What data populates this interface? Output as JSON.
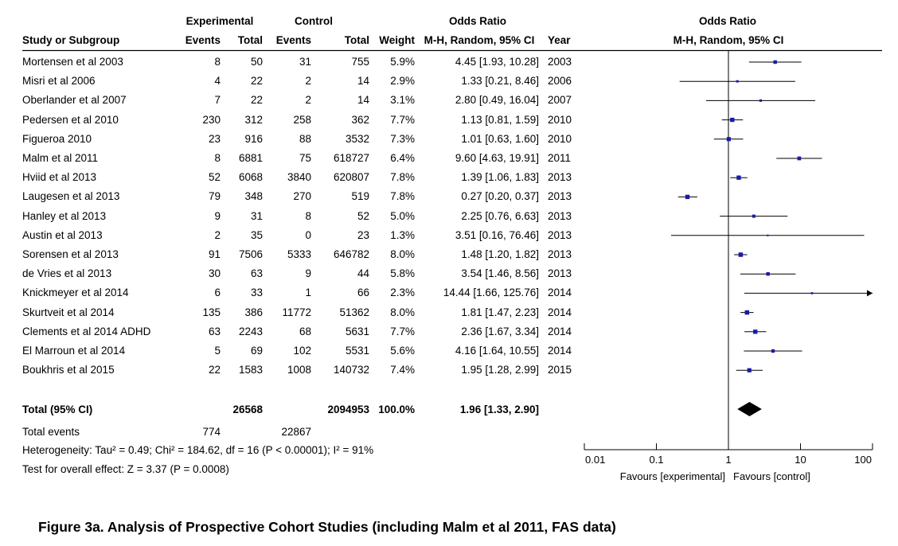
{
  "headers": {
    "experimental": "Experimental",
    "control": "Control",
    "odds_ratio_left": "Odds Ratio",
    "odds_ratio_right": "Odds Ratio",
    "study": "Study or Subgroup",
    "events_exp": "Events",
    "total_exp": "Total",
    "events_ctl": "Events",
    "total_ctl": "Total",
    "weight": "Weight",
    "method_left": "M-H, Random, 95% CI",
    "year": "Year",
    "method_right": "M-H, Random, 95% CI"
  },
  "studies": [
    {
      "name": "Mortensen et al 2003",
      "e_ev": "8",
      "e_tot": "50",
      "c_ev": "31",
      "c_tot": "755",
      "weight": "5.9%",
      "ci": "4.45 [1.93, 10.28]",
      "year": "2003"
    },
    {
      "name": "Misri et al 2006",
      "e_ev": "4",
      "e_tot": "22",
      "c_ev": "2",
      "c_tot": "14",
      "weight": "2.9%",
      "ci": "1.33 [0.21, 8.46]",
      "year": "2006"
    },
    {
      "name": "Oberlander et al 2007",
      "e_ev": "7",
      "e_tot": "22",
      "c_ev": "2",
      "c_tot": "14",
      "weight": "3.1%",
      "ci": "2.80 [0.49, 16.04]",
      "year": "2007"
    },
    {
      "name": "Pedersen et al 2010",
      "e_ev": "230",
      "e_tot": "312",
      "c_ev": "258",
      "c_tot": "362",
      "weight": "7.7%",
      "ci": "1.13 [0.81, 1.59]",
      "year": "2010"
    },
    {
      "name": "Figueroa 2010",
      "e_ev": "23",
      "e_tot": "916",
      "c_ev": "88",
      "c_tot": "3532",
      "weight": "7.3%",
      "ci": "1.01 [0.63, 1.60]",
      "year": "2010"
    },
    {
      "name": "Malm et al 2011",
      "e_ev": "8",
      "e_tot": "6881",
      "c_ev": "75",
      "c_tot": "618727",
      "weight": "6.4%",
      "ci": "9.60 [4.63, 19.91]",
      "year": "2011"
    },
    {
      "name": "Hviid et al 2013",
      "e_ev": "52",
      "e_tot": "6068",
      "c_ev": "3840",
      "c_tot": "620807",
      "weight": "7.8%",
      "ci": "1.39 [1.06, 1.83]",
      "year": "2013"
    },
    {
      "name": "Laugesen et al 2013",
      "e_ev": "79",
      "e_tot": "348",
      "c_ev": "270",
      "c_tot": "519",
      "weight": "7.8%",
      "ci": "0.27 [0.20, 0.37]",
      "year": "2013"
    },
    {
      "name": "Hanley et al 2013",
      "e_ev": "9",
      "e_tot": "31",
      "c_ev": "8",
      "c_tot": "52",
      "weight": "5.0%",
      "ci": "2.25 [0.76, 6.63]",
      "year": "2013"
    },
    {
      "name": "Austin et al 2013",
      "e_ev": "2",
      "e_tot": "35",
      "c_ev": "0",
      "c_tot": "23",
      "weight": "1.3%",
      "ci": "3.51 [0.16, 76.46]",
      "year": "2013"
    },
    {
      "name": "Sorensen et al 2013",
      "e_ev": "91",
      "e_tot": "7506",
      "c_ev": "5333",
      "c_tot": "646782",
      "weight": "8.0%",
      "ci": "1.48 [1.20, 1.82]",
      "year": "2013"
    },
    {
      "name": "de Vries et al 2013",
      "e_ev": "30",
      "e_tot": "63",
      "c_ev": "9",
      "c_tot": "44",
      "weight": "5.8%",
      "ci": "3.54 [1.46, 8.56]",
      "year": "2013"
    },
    {
      "name": "Knickmeyer et al 2014",
      "e_ev": "6",
      "e_tot": "33",
      "c_ev": "1",
      "c_tot": "66",
      "weight": "2.3%",
      "ci": "14.44 [1.66, 125.76]",
      "year": "2014"
    },
    {
      "name": "Skurtveit et al 2014",
      "e_ev": "135",
      "e_tot": "386",
      "c_ev": "11772",
      "c_tot": "51362",
      "weight": "8.0%",
      "ci": "1.81 [1.47, 2.23]",
      "year": "2014"
    },
    {
      "name": "Clements et al 2014 ADHD",
      "e_ev": "63",
      "e_tot": "2243",
      "c_ev": "68",
      "c_tot": "5631",
      "weight": "7.7%",
      "ci": "2.36 [1.67, 3.34]",
      "year": "2014"
    },
    {
      "name": "El Marroun et al 2014",
      "e_ev": "5",
      "e_tot": "69",
      "c_ev": "102",
      "c_tot": "5531",
      "weight": "5.6%",
      "ci": "4.16 [1.64, 10.55]",
      "year": "2014"
    },
    {
      "name": "Boukhris et al 2015",
      "e_ev": "22",
      "e_tot": "1583",
      "c_ev": "1008",
      "c_tot": "140732",
      "weight": "7.4%",
      "ci": "1.95 [1.28, 2.99]",
      "year": "2015"
    }
  ],
  "total": {
    "label": "Total (95% CI)",
    "e_tot": "26568",
    "c_tot": "2094953",
    "weight": "100.0%",
    "ci": "1.96 [1.33, 2.90]",
    "events_label": "Total events",
    "e_ev": "774",
    "c_ev": "22867"
  },
  "heterogeneity": "Heterogeneity: Tau² = 0.49; Chi² = 184.62, df = 16 (P < 0.00001); I² = 91%",
  "overall_test": "Test for overall effect: Z = 3.37 (P = 0.0008)",
  "axis": {
    "ticks": [
      "0.01",
      "0.1",
      "1",
      "10",
      "100"
    ],
    "favours_left": "Favours [experimental]",
    "favours_right": "Favours [control]"
  },
  "caption": "Figure 3a. Analysis of Prospective Cohort Studies (including Malm et al 2011, FAS data)",
  "colors": {
    "point": "#1a1aa8",
    "line": "#000000"
  },
  "chart_data": {
    "type": "scatter",
    "title": "Odds Ratio",
    "xlabel": "M-H, Random, 95% CI",
    "xscale": "log",
    "xlim": [
      0.01,
      100
    ],
    "reference_line": 1,
    "series": [
      {
        "values": [
          {
            "study": "Mortensen et al 2003",
            "or": 4.45,
            "lo": 1.93,
            "hi": 10.28,
            "weight": 5.9
          },
          {
            "study": "Misri et al 2006",
            "or": 1.33,
            "lo": 0.21,
            "hi": 8.46,
            "weight": 2.9
          },
          {
            "study": "Oberlander et al 2007",
            "or": 2.8,
            "lo": 0.49,
            "hi": 16.04,
            "weight": 3.1
          },
          {
            "study": "Pedersen et al 2010",
            "or": 1.13,
            "lo": 0.81,
            "hi": 1.59,
            "weight": 7.7
          },
          {
            "study": "Figueroa 2010",
            "or": 1.01,
            "lo": 0.63,
            "hi": 1.6,
            "weight": 7.3
          },
          {
            "study": "Malm et al 2011",
            "or": 9.6,
            "lo": 4.63,
            "hi": 19.91,
            "weight": 6.4
          },
          {
            "study": "Hviid et al 2013",
            "or": 1.39,
            "lo": 1.06,
            "hi": 1.83,
            "weight": 7.8
          },
          {
            "study": "Laugesen et al 2013",
            "or": 0.27,
            "lo": 0.2,
            "hi": 0.37,
            "weight": 7.8
          },
          {
            "study": "Hanley et al 2013",
            "or": 2.25,
            "lo": 0.76,
            "hi": 6.63,
            "weight": 5.0
          },
          {
            "study": "Austin et al 2013",
            "or": 3.51,
            "lo": 0.16,
            "hi": 76.46,
            "weight": 1.3
          },
          {
            "study": "Sorensen et al 2013",
            "or": 1.48,
            "lo": 1.2,
            "hi": 1.82,
            "weight": 8.0
          },
          {
            "study": "de Vries et al 2013",
            "or": 3.54,
            "lo": 1.46,
            "hi": 8.56,
            "weight": 5.8
          },
          {
            "study": "Knickmeyer et al 2014",
            "or": 14.44,
            "lo": 1.66,
            "hi": 125.76,
            "weight": 2.3
          },
          {
            "study": "Skurtveit et al 2014",
            "or": 1.81,
            "lo": 1.47,
            "hi": 2.23,
            "weight": 8.0
          },
          {
            "study": "Clements et al 2014 ADHD",
            "or": 2.36,
            "lo": 1.67,
            "hi": 3.34,
            "weight": 7.7
          },
          {
            "study": "El Marroun et al 2014",
            "or": 4.16,
            "lo": 1.64,
            "hi": 10.55,
            "weight": 5.6
          },
          {
            "study": "Boukhris et al 2015",
            "or": 1.95,
            "lo": 1.28,
            "hi": 2.99,
            "weight": 7.4
          }
        ]
      }
    ],
    "pooled": {
      "or": 1.96,
      "lo": 1.33,
      "hi": 2.9
    }
  }
}
